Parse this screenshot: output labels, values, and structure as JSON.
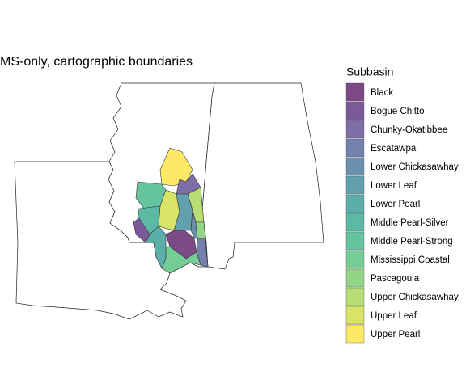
{
  "title": "MS-only, cartographic boundaries",
  "legend": {
    "title": "Subbasin",
    "items": [
      {
        "label": "Black",
        "color": "#7b4a87"
      },
      {
        "label": "Bogue Chitto",
        "color": "#7b5a9a"
      },
      {
        "label": "Chunky-Okatibbee",
        "color": "#7d6ea6"
      },
      {
        "label": "Escatawpa",
        "color": "#7581ad"
      },
      {
        "label": "Lower Chickasawhay",
        "color": "#6b90ae"
      },
      {
        "label": "Lower Leaf",
        "color": "#62a0ae"
      },
      {
        "label": "Lower Pearl",
        "color": "#5caea9"
      },
      {
        "label": "Middle Pearl-Silver",
        "color": "#5cb9a5"
      },
      {
        "label": "Middle Pearl-Strong",
        "color": "#64c4a0"
      },
      {
        "label": "Mississippi Coastal",
        "color": "#73cd94"
      },
      {
        "label": "Pascagoula",
        "color": "#91d585"
      },
      {
        "label": "Upper Chickasawhay",
        "color": "#b6de74"
      },
      {
        "label": "Upper Leaf",
        "color": "#d8e465"
      },
      {
        "label": "Upper Pearl",
        "color": "#fde965"
      }
    ]
  }
}
